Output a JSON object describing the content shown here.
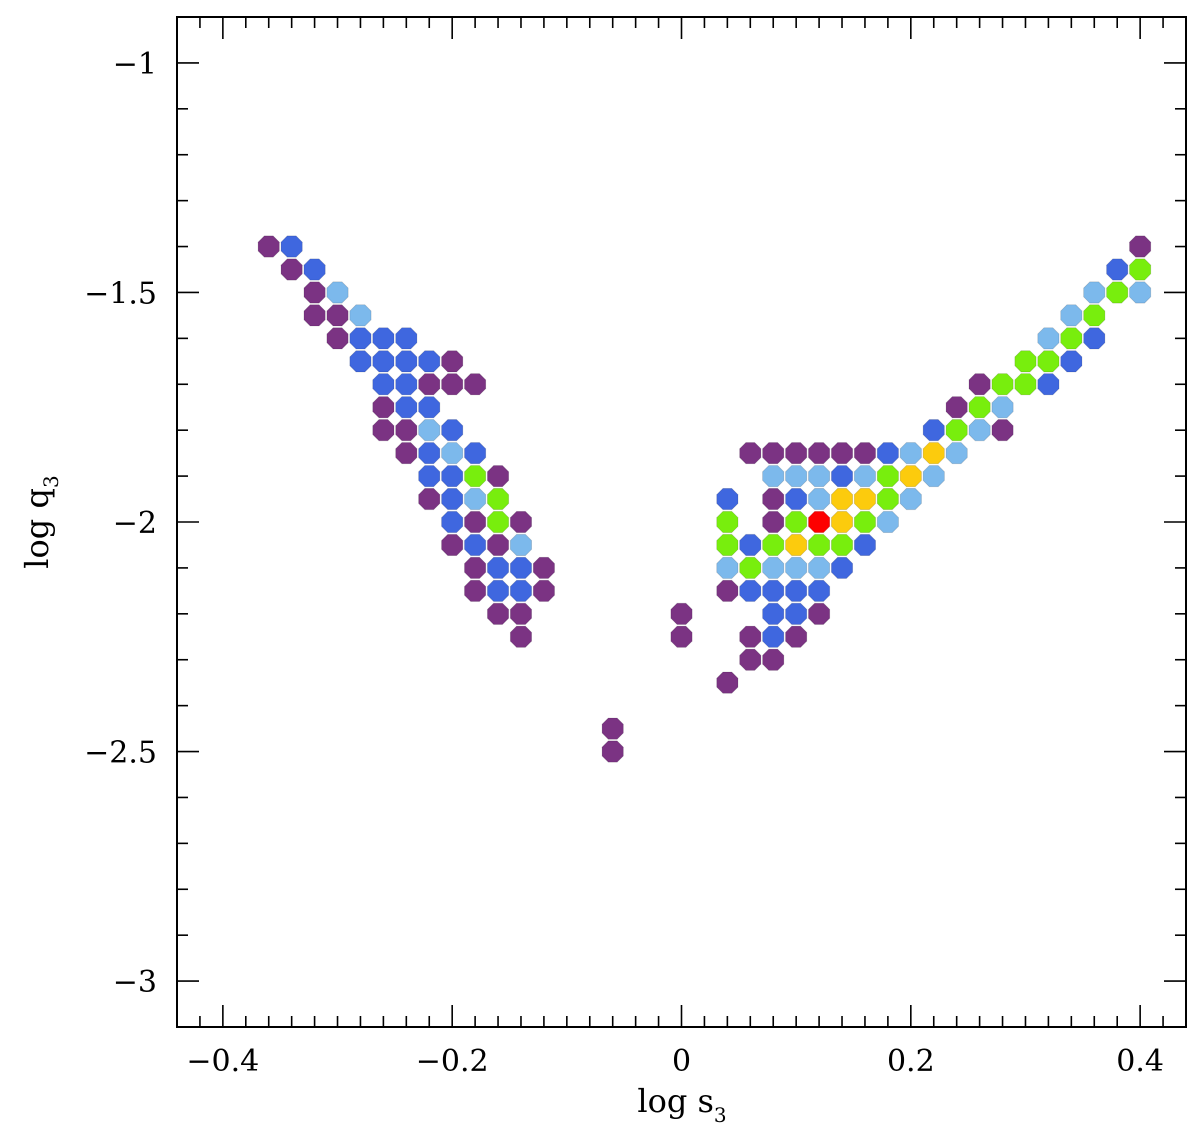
{
  "chart_data": {
    "type": "scatter",
    "title": "",
    "xlabel": "log s",
    "xlabel_subscript": "3",
    "ylabel": "log q",
    "ylabel_subscript": "3",
    "xlim": [
      -0.44,
      0.44
    ],
    "ylim": [
      -3.1,
      -0.9
    ],
    "x_ticks": [
      -0.4,
      -0.2,
      0,
      0.2,
      0.4
    ],
    "x_tick_labels": [
      "−0.4",
      "−0.2",
      "0",
      "0.2",
      "0.4"
    ],
    "y_ticks": [
      -1,
      -1.5,
      -2,
      -2.5,
      -3
    ],
    "y_tick_labels": [
      "−1",
      "−1.5",
      "−2",
      "−2.5",
      "−3"
    ],
    "grid": false,
    "legend": "none",
    "marker": "octagon",
    "level_colors": {
      "0": "#7b3383",
      "1": "#3f67df",
      "2": "#7cb9ec",
      "3": "#78ee0d",
      "4": "#fccb0d",
      "5": "#fd0000"
    },
    "points": [
      [
        -0.36,
        -1.4,
        0
      ],
      [
        -0.34,
        -1.4,
        1
      ],
      [
        -0.34,
        -1.45,
        0
      ],
      [
        -0.32,
        -1.45,
        1
      ],
      [
        -0.32,
        -1.5,
        0
      ],
      [
        -0.3,
        -1.5,
        2
      ],
      [
        -0.32,
        -1.55,
        0
      ],
      [
        -0.3,
        -1.55,
        0
      ],
      [
        -0.28,
        -1.55,
        2
      ],
      [
        -0.3,
        -1.6,
        0
      ],
      [
        -0.28,
        -1.6,
        1
      ],
      [
        -0.26,
        -1.6,
        1
      ],
      [
        -0.24,
        -1.6,
        1
      ],
      [
        -0.28,
        -1.65,
        1
      ],
      [
        -0.26,
        -1.65,
        1
      ],
      [
        -0.24,
        -1.65,
        1
      ],
      [
        -0.22,
        -1.65,
        1
      ],
      [
        -0.2,
        -1.65,
        0
      ],
      [
        -0.26,
        -1.7,
        1
      ],
      [
        -0.24,
        -1.7,
        1
      ],
      [
        -0.22,
        -1.7,
        0
      ],
      [
        -0.2,
        -1.7,
        0
      ],
      [
        -0.18,
        -1.7,
        0
      ],
      [
        -0.26,
        -1.75,
        0
      ],
      [
        -0.24,
        -1.75,
        1
      ],
      [
        -0.22,
        -1.75,
        1
      ],
      [
        -0.26,
        -1.8,
        0
      ],
      [
        -0.24,
        -1.8,
        0
      ],
      [
        -0.22,
        -1.8,
        2
      ],
      [
        -0.2,
        -1.8,
        1
      ],
      [
        -0.24,
        -1.85,
        0
      ],
      [
        -0.22,
        -1.85,
        1
      ],
      [
        -0.2,
        -1.85,
        2
      ],
      [
        -0.18,
        -1.85,
        1
      ],
      [
        -0.22,
        -1.9,
        1
      ],
      [
        -0.2,
        -1.9,
        1
      ],
      [
        -0.18,
        -1.9,
        3
      ],
      [
        -0.16,
        -1.9,
        0
      ],
      [
        -0.22,
        -1.95,
        0
      ],
      [
        -0.2,
        -1.95,
        1
      ],
      [
        -0.18,
        -1.95,
        2
      ],
      [
        -0.16,
        -1.95,
        3
      ],
      [
        -0.2,
        -2.0,
        1
      ],
      [
        -0.18,
        -2.0,
        0
      ],
      [
        -0.16,
        -2.0,
        3
      ],
      [
        -0.14,
        -2.0,
        0
      ],
      [
        -0.2,
        -2.05,
        0
      ],
      [
        -0.18,
        -2.05,
        1
      ],
      [
        -0.16,
        -2.05,
        0
      ],
      [
        -0.14,
        -2.05,
        2
      ],
      [
        -0.18,
        -2.1,
        0
      ],
      [
        -0.16,
        -2.1,
        1
      ],
      [
        -0.14,
        -2.1,
        1
      ],
      [
        -0.12,
        -2.1,
        0
      ],
      [
        -0.18,
        -2.15,
        0
      ],
      [
        -0.16,
        -2.15,
        1
      ],
      [
        -0.14,
        -2.15,
        1
      ],
      [
        -0.12,
        -2.15,
        0
      ],
      [
        -0.16,
        -2.2,
        0
      ],
      [
        -0.14,
        -2.2,
        0
      ],
      [
        -0.14,
        -2.25,
        0
      ],
      [
        -0.06,
        -2.45,
        0
      ],
      [
        -0.06,
        -2.5,
        0
      ],
      [
        0.0,
        -2.2,
        0
      ],
      [
        0.0,
        -2.25,
        0
      ],
      [
        0.04,
        -2.35,
        0
      ],
      [
        0.06,
        -2.25,
        0
      ],
      [
        0.08,
        -2.25,
        1
      ],
      [
        0.1,
        -2.25,
        0
      ],
      [
        0.06,
        -2.3,
        0
      ],
      [
        0.08,
        -2.3,
        0
      ],
      [
        0.08,
        -2.2,
        1
      ],
      [
        0.1,
        -2.2,
        1
      ],
      [
        0.12,
        -2.2,
        0
      ],
      [
        0.04,
        -2.15,
        0
      ],
      [
        0.06,
        -2.15,
        1
      ],
      [
        0.08,
        -2.15,
        1
      ],
      [
        0.1,
        -2.15,
        1
      ],
      [
        0.12,
        -2.15,
        1
      ],
      [
        0.04,
        -2.1,
        2
      ],
      [
        0.06,
        -2.1,
        3
      ],
      [
        0.08,
        -2.1,
        2
      ],
      [
        0.1,
        -2.1,
        2
      ],
      [
        0.12,
        -2.1,
        2
      ],
      [
        0.14,
        -2.1,
        1
      ],
      [
        0.04,
        -2.05,
        3
      ],
      [
        0.06,
        -2.05,
        1
      ],
      [
        0.08,
        -2.05,
        3
      ],
      [
        0.1,
        -2.05,
        4
      ],
      [
        0.12,
        -2.05,
        3
      ],
      [
        0.14,
        -2.05,
        3
      ],
      [
        0.16,
        -2.05,
        1
      ],
      [
        0.04,
        -2.0,
        3
      ],
      [
        0.08,
        -2.0,
        0
      ],
      [
        0.1,
        -2.0,
        3
      ],
      [
        0.12,
        -2.0,
        5
      ],
      [
        0.14,
        -2.0,
        4
      ],
      [
        0.16,
        -2.0,
        3
      ],
      [
        0.18,
        -2.0,
        2
      ],
      [
        0.04,
        -1.95,
        1
      ],
      [
        0.08,
        -1.95,
        0
      ],
      [
        0.1,
        -1.95,
        1
      ],
      [
        0.12,
        -1.95,
        2
      ],
      [
        0.14,
        -1.95,
        4
      ],
      [
        0.16,
        -1.95,
        4
      ],
      [
        0.18,
        -1.95,
        3
      ],
      [
        0.2,
        -1.95,
        2
      ],
      [
        0.08,
        -1.9,
        2
      ],
      [
        0.1,
        -1.9,
        2
      ],
      [
        0.12,
        -1.9,
        2
      ],
      [
        0.14,
        -1.9,
        1
      ],
      [
        0.16,
        -1.9,
        2
      ],
      [
        0.18,
        -1.9,
        3
      ],
      [
        0.2,
        -1.9,
        4
      ],
      [
        0.22,
        -1.9,
        2
      ],
      [
        0.06,
        -1.85,
        0
      ],
      [
        0.08,
        -1.85,
        0
      ],
      [
        0.1,
        -1.85,
        0
      ],
      [
        0.12,
        -1.85,
        0
      ],
      [
        0.14,
        -1.85,
        0
      ],
      [
        0.16,
        -1.85,
        0
      ],
      [
        0.18,
        -1.85,
        1
      ],
      [
        0.2,
        -1.85,
        2
      ],
      [
        0.22,
        -1.85,
        4
      ],
      [
        0.24,
        -1.85,
        2
      ],
      [
        0.22,
        -1.8,
        1
      ],
      [
        0.24,
        -1.8,
        3
      ],
      [
        0.26,
        -1.8,
        2
      ],
      [
        0.28,
        -1.8,
        0
      ],
      [
        0.24,
        -1.75,
        0
      ],
      [
        0.26,
        -1.75,
        3
      ],
      [
        0.28,
        -1.75,
        2
      ],
      [
        0.26,
        -1.7,
        0
      ],
      [
        0.28,
        -1.7,
        3
      ],
      [
        0.3,
        -1.7,
        3
      ],
      [
        0.32,
        -1.7,
        1
      ],
      [
        0.3,
        -1.65,
        3
      ],
      [
        0.32,
        -1.65,
        3
      ],
      [
        0.34,
        -1.65,
        1
      ],
      [
        0.32,
        -1.6,
        2
      ],
      [
        0.34,
        -1.6,
        3
      ],
      [
        0.36,
        -1.6,
        1
      ],
      [
        0.34,
        -1.55,
        2
      ],
      [
        0.36,
        -1.55,
        3
      ],
      [
        0.36,
        -1.5,
        2
      ],
      [
        0.38,
        -1.5,
        3
      ],
      [
        0.4,
        -1.5,
        2
      ],
      [
        0.38,
        -1.45,
        1
      ],
      [
        0.4,
        -1.45,
        3
      ],
      [
        0.4,
        -1.4,
        0
      ]
    ]
  }
}
